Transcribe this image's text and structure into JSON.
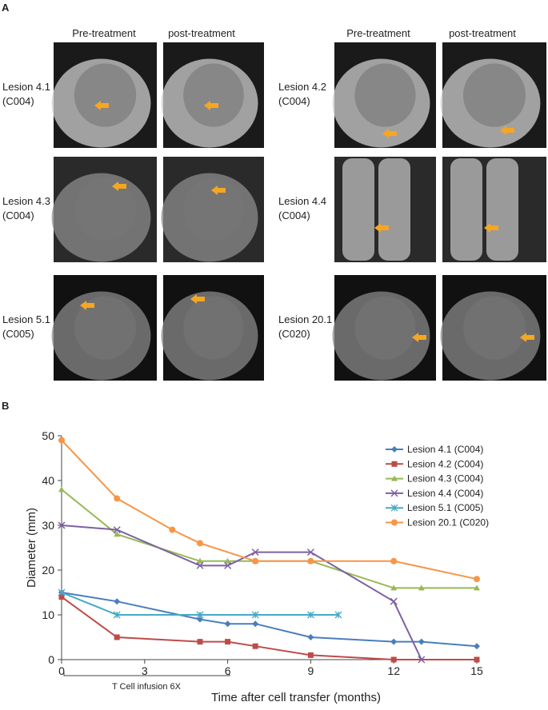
{
  "panel_a": {
    "label": "A",
    "columns": [
      "Pre-treatment",
      "post-treatment",
      "Pre-treatment",
      "post-treatment"
    ],
    "lesions": [
      {
        "name": "Lesion 4.1",
        "patient": "(C004)"
      },
      {
        "name": "Lesion 4.2",
        "patient": "(C004)"
      },
      {
        "name": "Lesion 4.3",
        "patient": "(C004)"
      },
      {
        "name": "Lesion 4.4",
        "patient": "(C004)"
      },
      {
        "name": "Lesion 5.1",
        "patient": "(C005)"
      },
      {
        "name": "Lesion 20.1",
        "patient": "(C020)"
      }
    ]
  },
  "panel_b_label": "B",
  "chart_data": {
    "type": "line",
    "xlabel": "Time after cell transfer (months)",
    "ylabel": "Diameter (mm)",
    "annotation": "T Cell infusion 6X",
    "xlim": [
      0,
      15
    ],
    "xticks": [
      0,
      3,
      6,
      9,
      12,
      15
    ],
    "ylim": [
      0,
      50
    ],
    "yticks": [
      0,
      10,
      20,
      30,
      40,
      50
    ],
    "grid": false,
    "legend": "upper right",
    "series": [
      {
        "name": "Lesion 4.1 (C004)",
        "color": "#4a7ebb",
        "marker": "diamond",
        "x": [
          0,
          2,
          5,
          6,
          7,
          9,
          12,
          13,
          15
        ],
        "values": [
          15,
          13,
          9,
          8,
          8,
          5,
          4,
          4,
          3
        ]
      },
      {
        "name": "Lesion 4.2 (C004)",
        "color": "#be4b48",
        "marker": "square",
        "x": [
          0,
          2,
          5,
          6,
          7,
          9,
          12,
          15
        ],
        "values": [
          14,
          5,
          4,
          4,
          3,
          1,
          0,
          0
        ]
      },
      {
        "name": "Lesion 4.3 (C004)",
        "color": "#98b954",
        "marker": "triangle",
        "x": [
          0,
          2,
          5,
          6,
          7,
          9,
          12,
          13,
          15
        ],
        "values": [
          38,
          28,
          22,
          22,
          22,
          22,
          16,
          16,
          16
        ]
      },
      {
        "name": "Lesion 4.4 (C004)",
        "color": "#7d60a0",
        "marker": "x",
        "x": [
          0,
          2,
          5,
          6,
          7,
          9,
          12,
          13
        ],
        "values": [
          30,
          29,
          21,
          21,
          24,
          24,
          13,
          0
        ]
      },
      {
        "name": "Lesion 5.1 (C005)",
        "color": "#46aac5",
        "marker": "asterisk",
        "x": [
          0,
          2,
          5,
          7,
          9,
          10
        ],
        "values": [
          15,
          10,
          10,
          10,
          10,
          10
        ]
      },
      {
        "name": "Lesion 20.1 (C020)",
        "color": "#f79646",
        "marker": "circle",
        "x": [
          0,
          2,
          4,
          5,
          7,
          9,
          12,
          15
        ],
        "values": [
          49,
          36,
          29,
          26,
          22,
          22,
          22,
          18
        ]
      }
    ]
  }
}
